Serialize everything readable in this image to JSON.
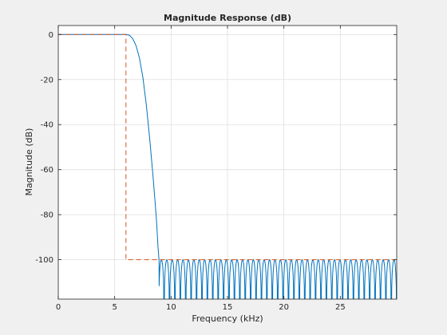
{
  "chart_data": {
    "type": "line",
    "title": "Magnitude Response (dB)",
    "xlabel": "Frequency (kHz)",
    "ylabel": "Magnitude (dB)",
    "xlim": [
      0,
      30
    ],
    "ylim": [
      -117.5,
      4
    ],
    "x_ticks": [
      0,
      5,
      10,
      15,
      20,
      25
    ],
    "y_ticks": [
      0,
      -20,
      -40,
      -60,
      -80,
      -100
    ],
    "x_tick_labels": [
      "0",
      "5",
      "10",
      "15",
      "20",
      "25"
    ],
    "y_tick_labels": [
      "0",
      "-20",
      "-40",
      "-60",
      "-80",
      "-100"
    ],
    "grid": true,
    "series": [
      {
        "style": "solid",
        "color": "#0072bd",
        "passband_edge_khz": 6.2,
        "stopband_edge_khz": 8.9,
        "stopband_attenuation_db": -100,
        "points": [
          [
            0,
            0
          ],
          [
            5,
            0
          ],
          [
            6,
            0
          ],
          [
            6.3,
            -0.3
          ],
          [
            6.6,
            -1.8
          ],
          [
            6.9,
            -5
          ],
          [
            7.2,
            -10.5
          ],
          [
            7.5,
            -19
          ],
          [
            7.8,
            -31
          ],
          [
            8.1,
            -46
          ],
          [
            8.4,
            -63
          ],
          [
            8.7,
            -82
          ],
          [
            8.85,
            -95
          ],
          [
            8.93,
            -100
          ]
        ]
      },
      {
        "style": "dashed",
        "color": "#d95319",
        "points": [
          [
            0,
            0
          ],
          [
            6,
            0
          ],
          [
            6,
            -100
          ],
          [
            30,
            -100
          ]
        ]
      }
    ]
  }
}
